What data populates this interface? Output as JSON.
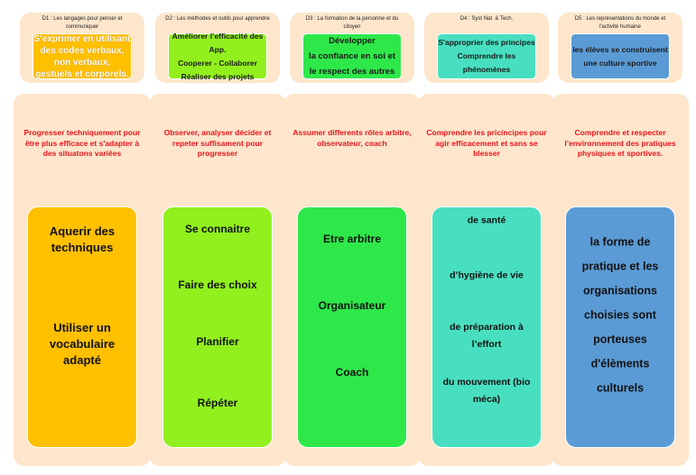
{
  "columns": [
    {
      "domain_title": "D1 : Les langages pour penser et communiquer",
      "top_lines": [
        "S’exprimer en utilisant",
        "des codes verbaux,",
        "non verbaux,",
        "gestuels et corporels."
      ],
      "goal": "Progresser techniquement pour être plus efficace et s'adapter à des situatons variées",
      "items": [
        "Aquerir des techniques",
        "Utiliser un vocabulaire adapté"
      ],
      "color": "#FFC000",
      "top_text_color": "#FFFFFF"
    },
    {
      "domain_title": "D2 : Les méthodes et outils pour apprendre",
      "top_lines": [
        "Améliorer l’efficacité des App.",
        "Cooperer - Collaborer",
        "Réaliser des projets"
      ],
      "goal": "Observer, analyser décider et repeter suffisament pour progresser",
      "items": [
        "Se connaitre",
        "Faire des choix",
        "Planifier",
        "Répéter"
      ],
      "color": "#92F01E",
      "top_text_color": "#1A1A1A"
    },
    {
      "domain_title": "D3 : La formation de la personne et du citoyen",
      "top_lines": [
        "Développer",
        "la confiance en soi et",
        "le respect des autres"
      ],
      "goal": "Assumer differents rôles arbitre, observateur, coach",
      "items": [
        "Etre arbitre",
        "Organisateur",
        "Coach"
      ],
      "color": "#2EE84A",
      "top_text_color": "#1A1A1A"
    },
    {
      "domain_title": "D4 : Syst Nat. & Tech.",
      "top_lines": [
        "S'approprier des principes",
        "Comprendre les phénomènes"
      ],
      "goal": "Comprendre les pricincipes pour agir efficacement et sans se blesser",
      "items": [
        "de santé",
        "d’hygiène de vie",
        "de préparation à l’effort",
        "du mouvement (bio méca)"
      ],
      "color": "#48DFC0",
      "top_text_color": "#1A1A1A"
    },
    {
      "domain_title": "D5 : Les représentations du monde et l'activité humaine",
      "top_lines": [
        "les élèves se construisent",
        "une culture sportive"
      ],
      "goal": "Comprendre et respecter l’environnement des pratiques physiques et sportives.",
      "items": [
        "la forme de pratique et les organisations choisies sont porteuses d'élèments culturels"
      ],
      "color": "#5B9BD5",
      "top_text_color": "#1A1A1A"
    }
  ]
}
